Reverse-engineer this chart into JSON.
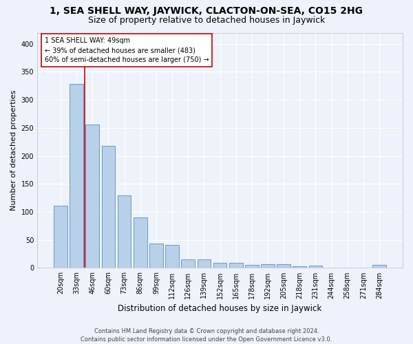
{
  "title": "1, SEA SHELL WAY, JAYWICK, CLACTON-ON-SEA, CO15 2HG",
  "subtitle": "Size of property relative to detached houses in Jaywick",
  "xlabel": "Distribution of detached houses by size in Jaywick",
  "ylabel": "Number of detached properties",
  "categories": [
    "20sqm",
    "33sqm",
    "46sqm",
    "60sqm",
    "73sqm",
    "86sqm",
    "99sqm",
    "112sqm",
    "126sqm",
    "139sqm",
    "152sqm",
    "165sqm",
    "178sqm",
    "192sqm",
    "205sqm",
    "218sqm",
    "231sqm",
    "244sqm",
    "258sqm",
    "271sqm",
    "284sqm"
  ],
  "values": [
    111,
    329,
    256,
    218,
    130,
    90,
    43,
    41,
    15,
    15,
    9,
    9,
    6,
    7,
    7,
    3,
    4,
    0,
    0,
    0,
    5
  ],
  "bar_color": "#b8d0e8",
  "bar_edge_color": "#6699cc",
  "background_color": "#eef2fa",
  "grid_color": "#ffffff",
  "vline_x": 1.5,
  "vline_color": "#cc0000",
  "annotation_text": "1 SEA SHELL WAY: 49sqm\n← 39% of detached houses are smaller (483)\n60% of semi-detached houses are larger (750) →",
  "annotation_box_color": "#ffffff",
  "annotation_box_edge": "#cc0000",
  "footer1": "Contains HM Land Registry data © Crown copyright and database right 2024.",
  "footer2": "Contains public sector information licensed under the Open Government Licence v3.0.",
  "ylim": [
    0,
    420
  ],
  "yticks": [
    0,
    50,
    100,
    150,
    200,
    250,
    300,
    350,
    400
  ],
  "title_fontsize": 10,
  "subtitle_fontsize": 9,
  "xlabel_fontsize": 8.5,
  "ylabel_fontsize": 8,
  "tick_fontsize": 7,
  "annotation_fontsize": 7,
  "footer_fontsize": 6
}
